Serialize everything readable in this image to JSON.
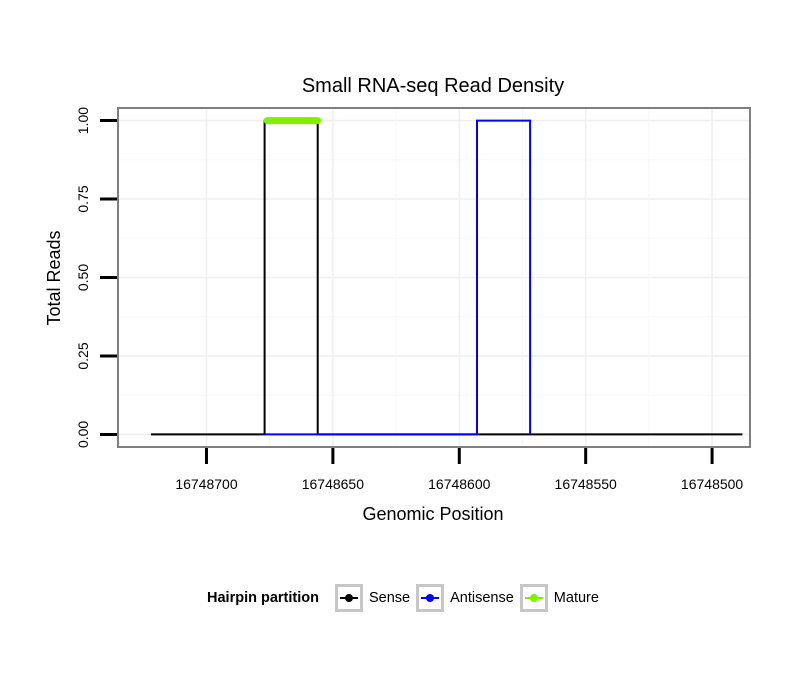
{
  "chart_data": {
    "type": "line",
    "title": "Small RNA-seq Read Density",
    "xlabel": "Genomic Position",
    "ylabel": "Total Reads",
    "x_reversed": true,
    "xlim": [
      16748735,
      16748485
    ],
    "ylim": [
      -0.04,
      1.04
    ],
    "x_ticks": [
      16748700,
      16748650,
      16748600,
      16748550,
      16748500
    ],
    "y_ticks": [
      0.0,
      0.25,
      0.5,
      0.75,
      1.0
    ],
    "y_tick_labels": [
      "0.00",
      "0.25",
      "0.50",
      "0.75",
      "1.00"
    ],
    "grid": true,
    "legend_position": "bottom",
    "legend_title": "Hairpin partition",
    "series": [
      {
        "name": "Sense",
        "color": "#000000",
        "x": [
          16748722,
          16748677,
          16748677,
          16748656,
          16748656,
          16748488
        ],
        "y": [
          0,
          0,
          1,
          1,
          0,
          0
        ]
      },
      {
        "name": "Antisense",
        "color": "#0000ff",
        "x": [
          16748677,
          16748656,
          16748593,
          16748593,
          16748572,
          16748572
        ],
        "y": [
          0,
          0,
          0,
          1,
          1,
          0
        ]
      },
      {
        "name": "Mature",
        "color": "#7ff000",
        "x": [
          16748676,
          16748656
        ],
        "y": [
          1,
          1
        ]
      }
    ]
  }
}
